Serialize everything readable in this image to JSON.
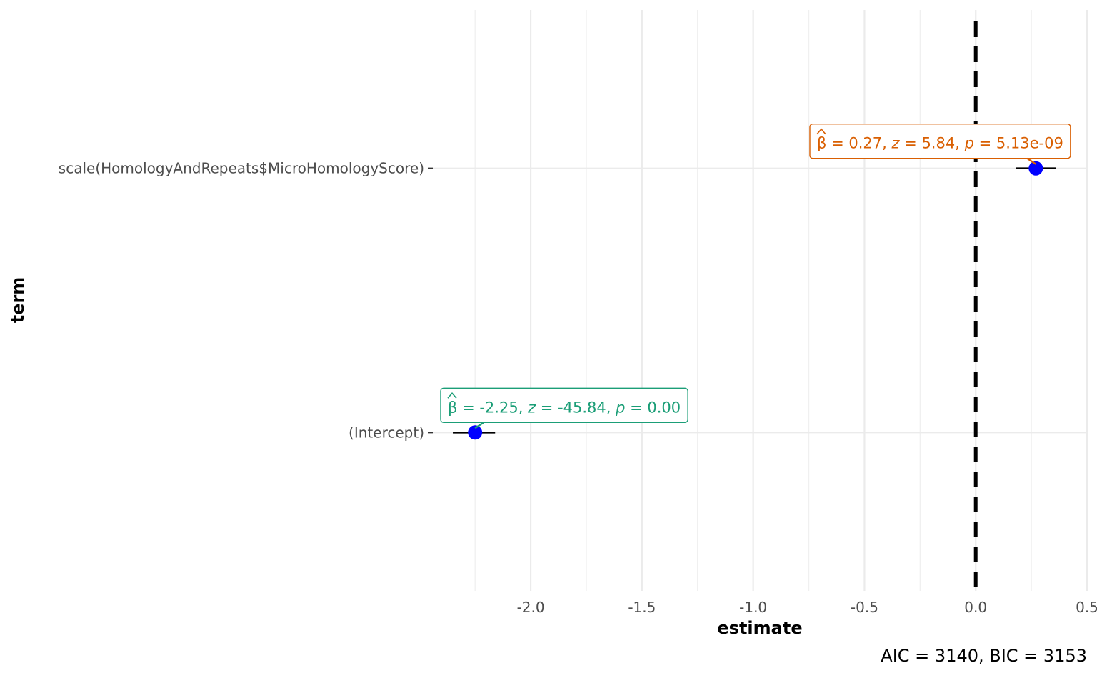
{
  "chart_data": {
    "type": "scatter",
    "xlabel": "estimate",
    "ylabel": "term",
    "xlim": [
      -2.44,
      0.5
    ],
    "x_ticks": [
      -2.0,
      -1.5,
      -1.0,
      -0.5,
      0.0,
      0.5
    ],
    "x_tick_labels": [
      "-2.0",
      "-1.5",
      "-1.0",
      "-0.5",
      "0.0",
      "0.5"
    ],
    "reference_line": 0,
    "grid": true,
    "caption": "AIC = 3140, BIC = 3153",
    "point_color": "#0000ff",
    "terms": [
      {
        "label": "scale(HomologyAndRepeats$MicroHomologyScore)",
        "estimate": 0.27,
        "ci_low": 0.18,
        "ci_high": 0.36,
        "color": "#d95f02",
        "beta": "0.27",
        "z": "5.84",
        "p": "5.13e-09"
      },
      {
        "label": "(Intercept)",
        "estimate": -2.25,
        "ci_low": -2.35,
        "ci_high": -2.16,
        "color": "#1b9e77",
        "beta": "-2.25",
        "z": "-45.84",
        "p": "0.00"
      }
    ]
  }
}
